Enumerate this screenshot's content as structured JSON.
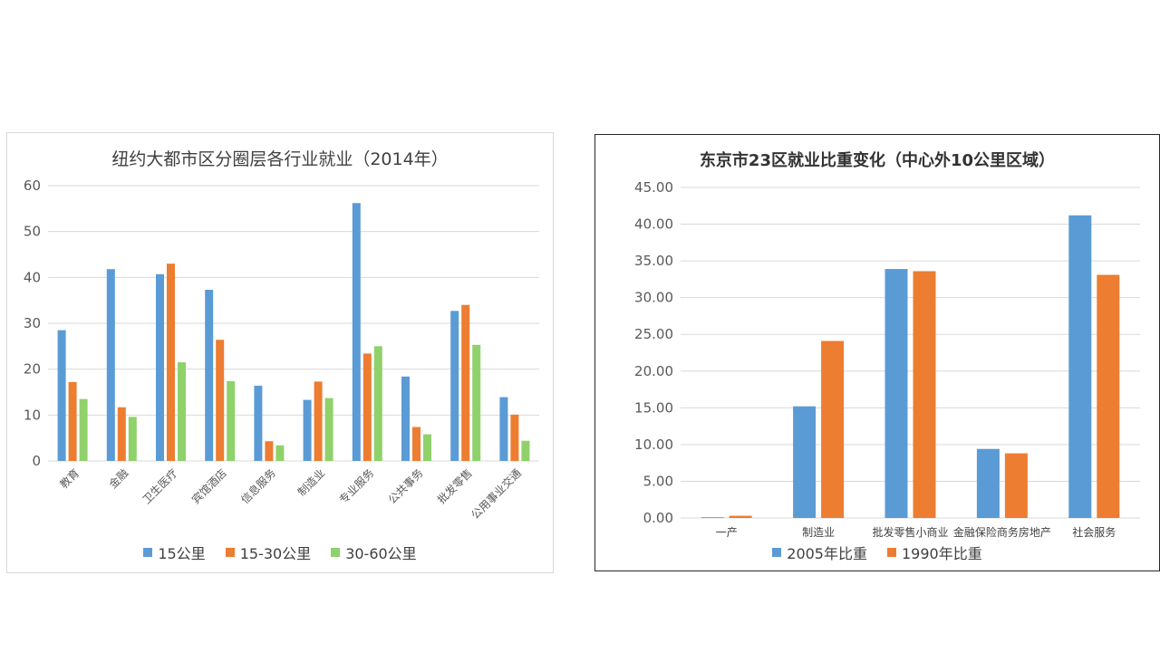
{
  "colors": {
    "blue": "#5b9bd5",
    "orange": "#ed7d31",
    "green": "#8fd16a",
    "grid": "#d9d9d9",
    "axis_text": "#595959"
  },
  "chart_data": [
    {
      "type": "bar",
      "title": "纽约大都市区分圈层各行业就业（2014年）",
      "categories": [
        "教育",
        "金融",
        "卫生医疗",
        "宾馆酒店",
        "信息服务",
        "制造业",
        "专业服务",
        "公共事务",
        "批发零售",
        "公用事业交通"
      ],
      "series": [
        {
          "name": "15公里",
          "color": "#5b9bd5",
          "values": [
            28.5,
            41.8,
            40.7,
            37.3,
            16.4,
            13.3,
            56.2,
            18.4,
            32.7,
            13.9
          ]
        },
        {
          "name": "15-30公里",
          "color": "#ed7d31",
          "values": [
            17.2,
            11.7,
            43.0,
            26.4,
            4.3,
            17.3,
            23.4,
            7.4,
            34.0,
            10.1
          ]
        },
        {
          "name": "30-60公里",
          "color": "#8fd16a",
          "values": [
            13.5,
            9.6,
            21.5,
            17.4,
            3.4,
            13.7,
            25.0,
            5.8,
            25.3,
            4.4
          ]
        }
      ],
      "ylim": [
        0,
        60
      ],
      "yticks": [
        "0",
        "10",
        "20",
        "30",
        "40",
        "50",
        "60"
      ],
      "xlabel_rotation": "rotated",
      "grid": true,
      "legend": "bottom"
    },
    {
      "type": "bar",
      "title": "东京市23区就业比重变化（中心外10公里区域）",
      "categories": [
        "一产",
        "制造业",
        "批发零售小商业",
        "金融保险商务房地产",
        "社会服务"
      ],
      "series": [
        {
          "name": "2005年比重",
          "color": "#5b9bd5",
          "values": [
            0.1,
            15.2,
            33.9,
            9.4,
            41.2
          ]
        },
        {
          "name": "1990年比重",
          "color": "#ed7d31",
          "values": [
            0.3,
            24.1,
            33.6,
            8.8,
            33.1
          ]
        }
      ],
      "ylim": [
        0,
        45
      ],
      "yticks": [
        "0.00",
        "5.00",
        "10.00",
        "15.00",
        "20.00",
        "25.00",
        "30.00",
        "35.00",
        "40.00",
        "45.00"
      ],
      "grid": true,
      "legend": "bottom"
    }
  ]
}
